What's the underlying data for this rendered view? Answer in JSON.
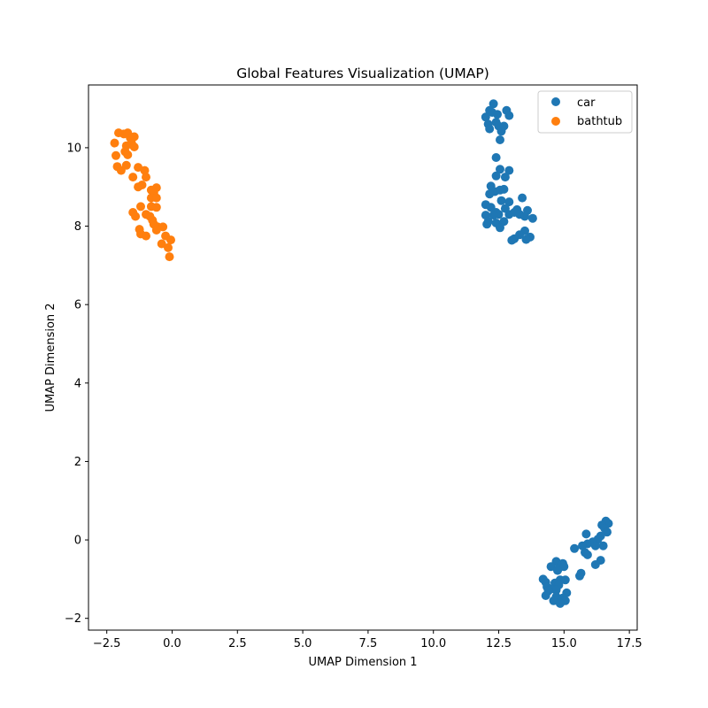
{
  "chart_data": {
    "type": "scatter",
    "title": "Global Features Visualization (UMAP)",
    "xlabel": "UMAP Dimension 1",
    "ylabel": "UMAP Dimension 2",
    "xlim": [
      -3.2,
      17.8
    ],
    "ylim": [
      -2.3,
      11.6
    ],
    "xticks": [
      -2.5,
      0.0,
      2.5,
      5.0,
      7.5,
      10.0,
      12.5,
      15.0,
      17.5
    ],
    "xtick_labels": [
      "−2.5",
      "0.0",
      "2.5",
      "5.0",
      "7.5",
      "10.0",
      "12.5",
      "15.0",
      "17.5"
    ],
    "yticks": [
      -2,
      0,
      2,
      4,
      6,
      8,
      10
    ],
    "ytick_labels": [
      "−2",
      "0",
      "2",
      "4",
      "6",
      "8",
      "10"
    ],
    "grid": false,
    "legend_position": "top-right",
    "series": [
      {
        "name": "car",
        "color": "#1f77b4",
        "points": [
          [
            12.3,
            11.12
          ],
          [
            12.0,
            10.78
          ],
          [
            12.15,
            10.95
          ],
          [
            12.25,
            10.9
          ],
          [
            12.45,
            10.85
          ],
          [
            12.8,
            10.95
          ],
          [
            12.9,
            10.82
          ],
          [
            12.4,
            10.65
          ],
          [
            12.5,
            10.55
          ],
          [
            12.1,
            10.6
          ],
          [
            12.15,
            10.48
          ],
          [
            12.6,
            10.42
          ],
          [
            12.55,
            10.2
          ],
          [
            12.7,
            10.55
          ],
          [
            12.4,
            9.75
          ],
          [
            12.55,
            9.45
          ],
          [
            12.9,
            9.42
          ],
          [
            12.4,
            9.28
          ],
          [
            12.75,
            9.25
          ],
          [
            12.2,
            9.02
          ],
          [
            12.35,
            8.88
          ],
          [
            12.55,
            8.92
          ],
          [
            12.7,
            8.94
          ],
          [
            12.15,
            8.82
          ],
          [
            13.4,
            8.72
          ],
          [
            12.6,
            8.65
          ],
          [
            12.9,
            8.62
          ],
          [
            12.0,
            8.55
          ],
          [
            12.2,
            8.48
          ],
          [
            12.75,
            8.45
          ],
          [
            13.2,
            8.42
          ],
          [
            13.6,
            8.4
          ],
          [
            12.4,
            8.35
          ],
          [
            12.5,
            8.3
          ],
          [
            12.9,
            8.3
          ],
          [
            13.1,
            8.35
          ],
          [
            13.3,
            8.3
          ],
          [
            12.0,
            8.28
          ],
          [
            12.3,
            8.28
          ],
          [
            13.5,
            8.25
          ],
          [
            13.8,
            8.2
          ],
          [
            12.1,
            8.12
          ],
          [
            12.05,
            8.05
          ],
          [
            12.4,
            8.08
          ],
          [
            12.7,
            8.12
          ],
          [
            12.55,
            7.96
          ],
          [
            13.5,
            7.88
          ],
          [
            13.3,
            7.78
          ],
          [
            13.7,
            7.72
          ],
          [
            13.1,
            7.68
          ],
          [
            13.0,
            7.64
          ],
          [
            13.55,
            7.66
          ],
          [
            16.6,
            0.48
          ],
          [
            16.7,
            0.42
          ],
          [
            16.45,
            0.38
          ],
          [
            16.55,
            0.3
          ],
          [
            16.65,
            0.2
          ],
          [
            16.4,
            0.1
          ],
          [
            16.3,
            0.02
          ],
          [
            15.85,
            0.15
          ],
          [
            16.1,
            -0.05
          ],
          [
            15.9,
            -0.1
          ],
          [
            15.7,
            -0.15
          ],
          [
            16.5,
            -0.15
          ],
          [
            16.2,
            -0.15
          ],
          [
            15.4,
            -0.22
          ],
          [
            15.8,
            -0.32
          ],
          [
            15.9,
            -0.38
          ],
          [
            16.4,
            -0.52
          ],
          [
            16.2,
            -0.63
          ],
          [
            14.7,
            -0.55
          ],
          [
            14.95,
            -0.6
          ],
          [
            14.5,
            -0.68
          ],
          [
            14.8,
            -0.72
          ],
          [
            15.0,
            -0.68
          ],
          [
            14.75,
            -0.78
          ],
          [
            15.65,
            -0.85
          ],
          [
            15.6,
            -0.92
          ],
          [
            14.2,
            -1.0
          ],
          [
            14.85,
            -1.02
          ],
          [
            15.05,
            -1.02
          ],
          [
            14.3,
            -1.08
          ],
          [
            14.65,
            -1.1
          ],
          [
            14.8,
            -1.15
          ],
          [
            14.35,
            -1.2
          ],
          [
            14.5,
            -1.25
          ],
          [
            14.7,
            -1.28
          ],
          [
            14.4,
            -1.3
          ],
          [
            15.1,
            -1.35
          ],
          [
            14.3,
            -1.42
          ],
          [
            14.7,
            -1.45
          ],
          [
            14.95,
            -1.48
          ],
          [
            14.6,
            -1.55
          ],
          [
            15.05,
            -1.55
          ],
          [
            14.85,
            -1.62
          ]
        ]
      },
      {
        "name": "bathtub",
        "color": "#ff7f0e",
        "points": [
          [
            -2.05,
            10.38
          ],
          [
            -1.85,
            10.35
          ],
          [
            -1.7,
            10.38
          ],
          [
            -1.6,
            10.25
          ],
          [
            -1.45,
            10.28
          ],
          [
            -1.55,
            10.12
          ],
          [
            -2.2,
            10.12
          ],
          [
            -1.75,
            10.05
          ],
          [
            -1.45,
            10.02
          ],
          [
            -1.8,
            9.9
          ],
          [
            -1.7,
            9.82
          ],
          [
            -2.15,
            9.8
          ],
          [
            -1.75,
            9.55
          ],
          [
            -2.1,
            9.52
          ],
          [
            -1.3,
            9.5
          ],
          [
            -1.95,
            9.42
          ],
          [
            -1.05,
            9.42
          ],
          [
            -1.5,
            9.25
          ],
          [
            -1.0,
            9.25
          ],
          [
            -1.15,
            9.05
          ],
          [
            -1.3,
            9.0
          ],
          [
            -0.6,
            8.98
          ],
          [
            -0.8,
            8.92
          ],
          [
            -0.7,
            8.85
          ],
          [
            -0.8,
            8.72
          ],
          [
            -0.6,
            8.72
          ],
          [
            -1.2,
            8.5
          ],
          [
            -0.8,
            8.5
          ],
          [
            -0.6,
            8.48
          ],
          [
            -1.5,
            8.35
          ],
          [
            -1.4,
            8.25
          ],
          [
            -1.0,
            8.3
          ],
          [
            -0.85,
            8.25
          ],
          [
            -0.75,
            8.15
          ],
          [
            -0.7,
            8.05
          ],
          [
            -0.55,
            7.98
          ],
          [
            -0.35,
            7.98
          ],
          [
            -0.6,
            7.9
          ],
          [
            -1.25,
            7.92
          ],
          [
            -1.2,
            7.8
          ],
          [
            -1.0,
            7.75
          ],
          [
            -0.25,
            7.75
          ],
          [
            -0.05,
            7.65
          ],
          [
            -0.4,
            7.55
          ],
          [
            -0.15,
            7.45
          ],
          [
            -0.1,
            7.22
          ]
        ]
      }
    ]
  }
}
